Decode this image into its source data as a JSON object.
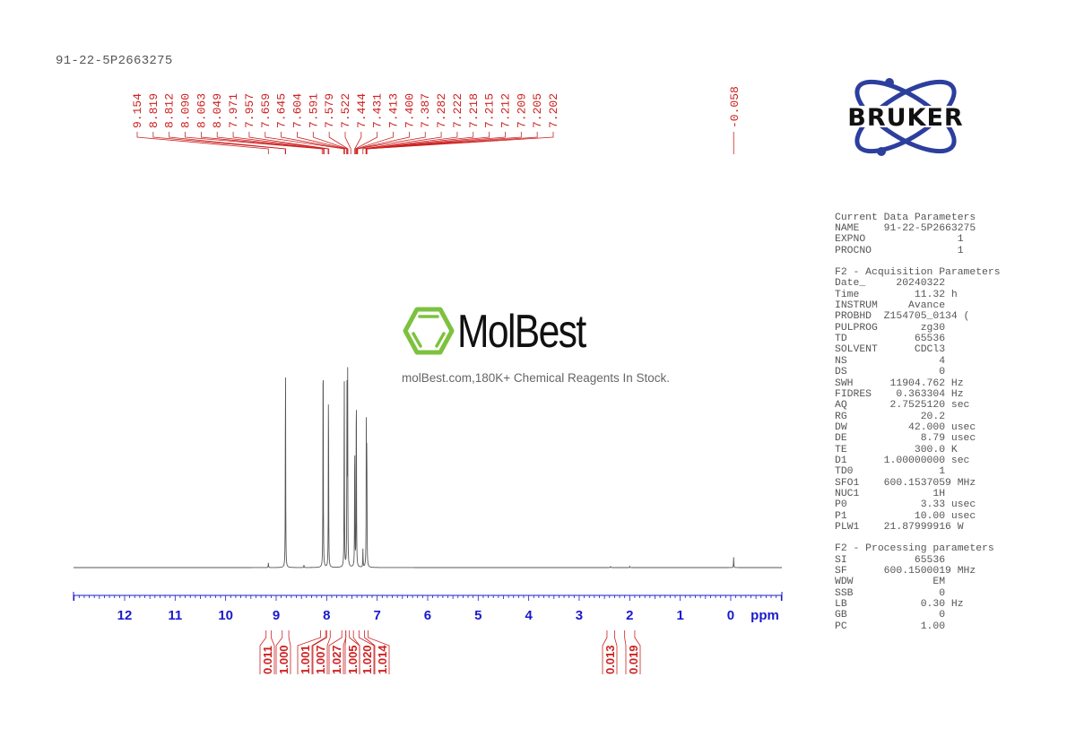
{
  "title": "91-22-5P2663275",
  "watermark": {
    "brand": "MolBest",
    "tagline": "molBest.com,180K+ Chemical Reagents In Stock.",
    "color": "#7dc23f"
  },
  "logo": {
    "text": "BRUKER",
    "orbit_color": "#2c3f9e"
  },
  "parameters": {
    "current": {
      "heading": "Current Data Parameters",
      "rows": [
        {
          "k": "NAME",
          "v": "91-22-5P2663275",
          "u": ""
        },
        {
          "k": "EXPNO",
          "v": "1",
          "u": ""
        },
        {
          "k": "PROCNO",
          "v": "1",
          "u": ""
        }
      ]
    },
    "acquisition": {
      "heading": "F2 - Acquisition Parameters",
      "rows": [
        {
          "k": "Date_",
          "v": "20240322",
          "u": ""
        },
        {
          "k": "Time",
          "v": "11.32",
          "u": "h"
        },
        {
          "k": "INSTRUM",
          "v": "Avance",
          "u": ""
        },
        {
          "k": "PROBHD",
          "v": "Z154705_0134 (",
          "u": ""
        },
        {
          "k": "PULPROG",
          "v": "zg30",
          "u": ""
        },
        {
          "k": "TD",
          "v": "65536",
          "u": ""
        },
        {
          "k": "SOLVENT",
          "v": "CDCl3",
          "u": ""
        },
        {
          "k": "NS",
          "v": "4",
          "u": ""
        },
        {
          "k": "DS",
          "v": "0",
          "u": ""
        },
        {
          "k": "SWH",
          "v": "11904.762",
          "u": "Hz"
        },
        {
          "k": "FIDRES",
          "v": "0.363304",
          "u": "Hz"
        },
        {
          "k": "AQ",
          "v": "2.7525120",
          "u": "sec"
        },
        {
          "k": "RG",
          "v": "20.2",
          "u": ""
        },
        {
          "k": "DW",
          "v": "42.000",
          "u": "usec"
        },
        {
          "k": "DE",
          "v": "8.79",
          "u": "usec"
        },
        {
          "k": "TE",
          "v": "300.0",
          "u": "K"
        },
        {
          "k": "D1",
          "v": "1.00000000",
          "u": "sec"
        },
        {
          "k": "TD0",
          "v": "1",
          "u": ""
        },
        {
          "k": "SFO1",
          "v": "600.1537059",
          "u": "MHz"
        },
        {
          "k": "NUC1",
          "v": "1H",
          "u": ""
        },
        {
          "k": "P0",
          "v": "3.33",
          "u": "usec"
        },
        {
          "k": "P1",
          "v": "10.00",
          "u": "usec"
        },
        {
          "k": "PLW1",
          "v": "21.87999916",
          "u": "W"
        }
      ]
    },
    "processing": {
      "heading": "F2 - Processing parameters",
      "rows": [
        {
          "k": "SI",
          "v": "65536",
          "u": ""
        },
        {
          "k": "SF",
          "v": "600.1500019",
          "u": "MHz"
        },
        {
          "k": "WDW",
          "v": "EM",
          "u": ""
        },
        {
          "k": "SSB",
          "v": "0",
          "u": ""
        },
        {
          "k": "LB",
          "v": "0.30",
          "u": "Hz"
        },
        {
          "k": "GB",
          "v": "0",
          "u": ""
        },
        {
          "k": "PC",
          "v": "1.00",
          "u": ""
        }
      ]
    }
  },
  "chart_data": {
    "type": "line",
    "title": "91-22-5P2663275",
    "xlabel": "ppm",
    "ylabel": "",
    "xlim": [
      13.0,
      -1.0
    ],
    "x_reversed": true,
    "x_ticks": [
      12,
      11,
      10,
      9,
      8,
      7,
      6,
      5,
      4,
      3,
      2,
      1,
      0
    ],
    "grid": false,
    "axis_color": "#1a1acc",
    "label_color": "#cc2222",
    "peak_labels_group1": [
      "9.154",
      "8.819",
      "8.812",
      "8.090",
      "8.063",
      "8.049",
      "7.971",
      "7.957",
      "7.659",
      "7.645",
      "7.604",
      "7.591",
      "7.579",
      "7.522",
      "7.444",
      "7.431",
      "7.413",
      "7.400",
      "7.387",
      "7.282",
      "7.222",
      "7.218",
      "7.215",
      "7.212",
      "7.209",
      "7.205",
      "7.202"
    ],
    "peak_labels_group2": [
      "-0.058"
    ],
    "peaks": [
      {
        "ppm": 9.154,
        "height": 0.02
      },
      {
        "ppm": 8.815,
        "height": 0.88
      },
      {
        "ppm": 8.45,
        "height": 0.01
      },
      {
        "ppm": 8.07,
        "height": 1.0
      },
      {
        "ppm": 7.964,
        "height": 0.78
      },
      {
        "ppm": 7.652,
        "height": 0.82
      },
      {
        "ppm": 7.598,
        "height": 0.68
      },
      {
        "ppm": 7.585,
        "height": 0.78
      },
      {
        "ppm": 7.444,
        "height": 0.55
      },
      {
        "ppm": 7.413,
        "height": 0.8
      },
      {
        "ppm": 7.282,
        "height": 0.07
      },
      {
        "ppm": 7.215,
        "height": 0.55
      },
      {
        "ppm": 7.205,
        "height": 0.5
      },
      {
        "ppm": 2.38,
        "height": 0.005
      },
      {
        "ppm": 2.0,
        "height": 0.005
      },
      {
        "ppm": -0.058,
        "height": 0.04
      }
    ],
    "integrals": [
      {
        "from": 9.2,
        "to": 9.1,
        "value": "0.011"
      },
      {
        "from": 8.88,
        "to": 8.75,
        "value": "1.000"
      },
      {
        "from": 8.12,
        "to": 8.02,
        "value": "1.001"
      },
      {
        "from": 8.0,
        "to": 7.93,
        "value": "1.007"
      },
      {
        "from": 7.7,
        "to": 7.62,
        "value": "1.027"
      },
      {
        "from": 7.62,
        "to": 7.55,
        "value": "1.005"
      },
      {
        "from": 7.47,
        "to": 7.36,
        "value": "1.020"
      },
      {
        "from": 7.25,
        "to": 7.18,
        "value": "1.014"
      },
      {
        "from": 2.45,
        "to": 2.3,
        "value": "0.013"
      },
      {
        "from": 2.1,
        "to": 1.9,
        "value": "0.019"
      }
    ]
  }
}
